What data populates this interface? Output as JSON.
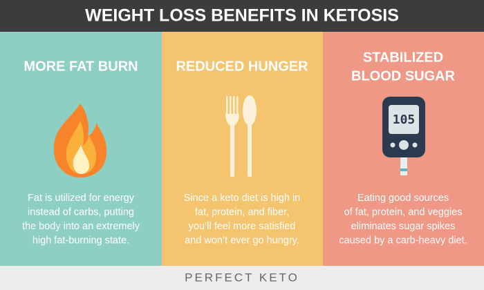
{
  "header": {
    "title": "WEIGHT LOSS BENEFITS IN KETOSIS"
  },
  "panels": [
    {
      "title_lines": [
        "MORE FAT BURN"
      ],
      "text_lines": [
        "Fat is utilized for energy",
        "instead of carbs, putting",
        "the body into an extremely",
        "high fat-burning state."
      ]
    },
    {
      "title_lines": [
        "REDUCED HUNGER"
      ],
      "text_lines": [
        "Since a keto diet is high in",
        "fat, protein, and fiber,",
        "you’ll feel more satisfied",
        "and won’t ever go hungry."
      ]
    },
    {
      "title_lines": [
        "STABILIZED",
        "BLOOD SUGAR"
      ],
      "meter_reading": "105",
      "text_lines": [
        "Eating good sources",
        "of fat, protein, and veggies",
        "eliminates sugar spikes",
        "caused by a carb-heavy diet."
      ]
    }
  ],
  "footer": {
    "brand": "PERFECT KETO"
  }
}
